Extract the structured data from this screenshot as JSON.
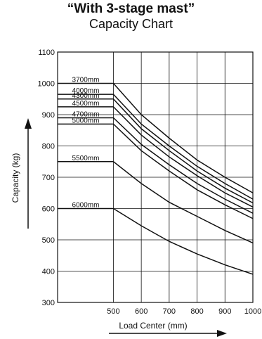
{
  "chart_data": {
    "type": "line",
    "title": "“With 3-stage mast”",
    "subtitle": "Capacity Chart",
    "xlabel": "Load Center (mm)",
    "ylabel": "Capacity (kg)",
    "xlim": [
      300,
      1000
    ],
    "ylim": [
      300,
      1100
    ],
    "x_ticks": [
      500,
      600,
      700,
      800,
      900,
      1000
    ],
    "y_ticks": [
      300,
      400,
      500,
      600,
      700,
      800,
      900,
      1000,
      1100
    ],
    "grid": true,
    "x": [
      500,
      600,
      700,
      800,
      900,
      1000
    ],
    "series": [
      {
        "name": "3700mm",
        "values": [
          1000,
          900,
          825,
          755,
          700,
          650
        ]
      },
      {
        "name": "4000mm",
        "values": [
          965,
          870,
          800,
          735,
          680,
          630
        ]
      },
      {
        "name": "4300mm",
        "values": [
          950,
          855,
          785,
          720,
          665,
          618
        ]
      },
      {
        "name": "4500mm",
        "values": [
          925,
          835,
          765,
          705,
          650,
          605
        ]
      },
      {
        "name": "4700mm",
        "values": [
          890,
          805,
          740,
          680,
          630,
          585
        ]
      },
      {
        "name": "5000mm",
        "values": [
          870,
          785,
          720,
          660,
          612,
          568
        ]
      },
      {
        "name": "5500mm",
        "values": [
          750,
          680,
          620,
          575,
          530,
          490
        ]
      },
      {
        "name": "6000mm",
        "values": [
          600,
          545,
          495,
          455,
          420,
          390
        ]
      }
    ]
  }
}
